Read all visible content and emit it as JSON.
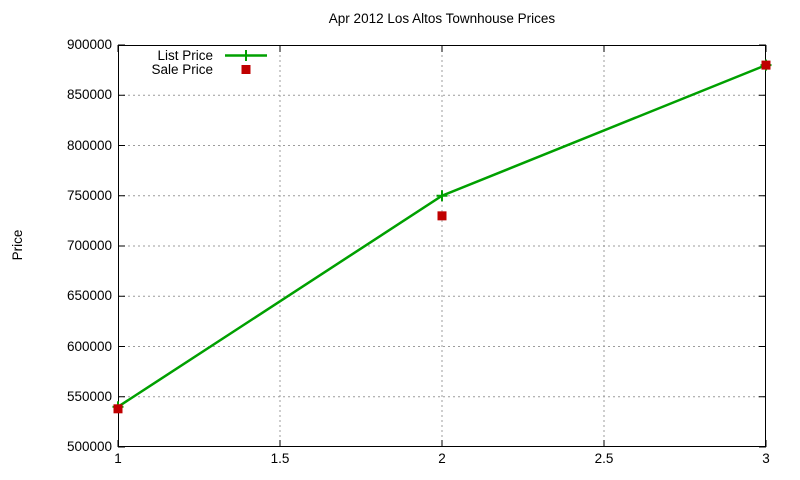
{
  "chart_data": {
    "type": "line",
    "title": "Apr 2012 Los Altos Townhouse Prices",
    "xlabel": "",
    "ylabel": "Price",
    "x": [
      1,
      2,
      3
    ],
    "series": [
      {
        "name": "List Price",
        "values": [
          540000,
          750000,
          880000
        ],
        "color": "#00a000",
        "style": "line+plus",
        "line_width": 2.5
      },
      {
        "name": "Sale Price",
        "values": [
          538000,
          730000,
          880000
        ],
        "color": "#c00000",
        "style": "square",
        "marker_size": 9
      }
    ],
    "xlim": [
      1,
      3
    ],
    "ylim": [
      500000,
      900000
    ],
    "xticks": [
      1,
      1.5,
      2,
      2.5,
      3
    ],
    "xtick_labels": [
      "1",
      "1.5",
      "2",
      "2.5",
      "3"
    ],
    "yticks": [
      500000,
      550000,
      600000,
      650000,
      700000,
      750000,
      800000,
      850000,
      900000
    ],
    "ytick_labels": [
      "500000",
      "550000",
      "600000",
      "650000",
      "700000",
      "750000",
      "800000",
      "850000",
      "900000"
    ],
    "grid": true,
    "grid_style": "dashed",
    "legend_position": "top-left",
    "colors": {
      "background": "#ffffff",
      "border": "#000000",
      "grid": "#9c9c9c",
      "text": "#000000"
    }
  }
}
